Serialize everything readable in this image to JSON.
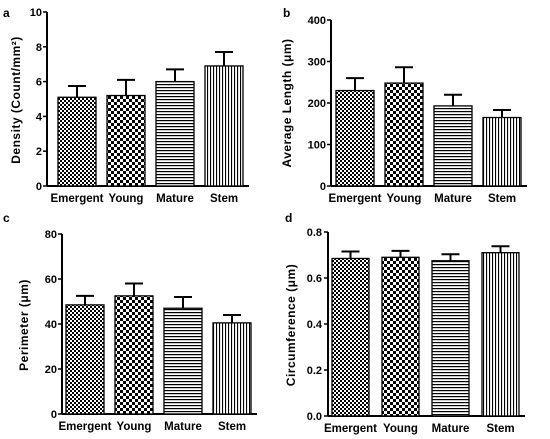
{
  "chart_data": [
    {
      "panel": "a",
      "type": "bar",
      "categories": [
        "Emergent",
        "Young",
        "Mature",
        "Stem"
      ],
      "values": [
        5.1,
        5.2,
        6.0,
        6.9
      ],
      "errors": [
        0.65,
        0.9,
        0.7,
        0.8
      ],
      "patterns": [
        "checker",
        "checker-large",
        "horizontal",
        "vertical"
      ],
      "ylabel": "Density (Count/mm²)",
      "ylim": [
        0,
        10
      ],
      "yticks": [
        0,
        2,
        4,
        6,
        8,
        10
      ],
      "grid": false
    },
    {
      "panel": "b",
      "type": "bar",
      "categories": [
        "Emergent",
        "Young",
        "Mature",
        "Stem"
      ],
      "values": [
        230,
        248,
        193,
        165
      ],
      "errors": [
        30,
        38,
        27,
        18
      ],
      "patterns": [
        "checker",
        "checker-large",
        "horizontal",
        "vertical"
      ],
      "ylabel": "Average Length (μm)",
      "ylim": [
        0,
        400
      ],
      "yticks": [
        0,
        100,
        200,
        300,
        400
      ],
      "grid": false
    },
    {
      "panel": "c",
      "type": "bar",
      "categories": [
        "Emergent",
        "Young",
        "Mature",
        "Stem"
      ],
      "values": [
        48.5,
        52.5,
        47,
        40.5
      ],
      "errors": [
        4,
        5.5,
        5,
        3.5
      ],
      "patterns": [
        "checker",
        "checker-large",
        "horizontal",
        "vertical"
      ],
      "ylabel": "Perimeter (μm)",
      "ylim": [
        0,
        80
      ],
      "yticks": [
        0,
        20,
        40,
        60,
        80
      ],
      "grid": false
    },
    {
      "panel": "d",
      "type": "bar",
      "categories": [
        "Emergent",
        "Young",
        "Mature",
        "Stem"
      ],
      "values": [
        0.685,
        0.69,
        0.675,
        0.71
      ],
      "errors": [
        0.03,
        0.028,
        0.028,
        0.028
      ],
      "patterns": [
        "checker",
        "checker-large",
        "horizontal",
        "vertical"
      ],
      "ylabel": "Circumference (μm)",
      "ylim": [
        0,
        0.8
      ],
      "yticks": [
        "0.0",
        "0.2",
        "0.4",
        "0.6",
        "0.8"
      ],
      "grid": false
    }
  ]
}
